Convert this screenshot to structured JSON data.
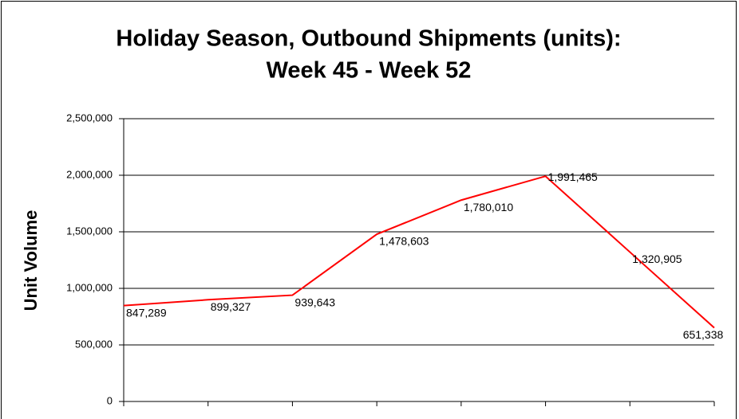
{
  "chart_data": {
    "type": "line",
    "title": [
      "Holiday Season, Outbound Shipments (units):",
      "Week 45 - Week 52"
    ],
    "y_label": "Unit Volume",
    "values": [
      847289,
      899327,
      939643,
      1478603,
      1780010,
      1991465,
      1320905,
      651338
    ],
    "value_labels": [
      "847,289",
      "899,327",
      "939,643",
      "1,478,603",
      "1,780,010",
      "1,991,465",
      "1,320,905",
      "651,338"
    ],
    "color": "#ff0000",
    "ylim": [
      0,
      2500000
    ],
    "yticks": [
      0,
      {
        "value": 500000,
        "label": "500,000"
      },
      {
        "value": 1000000,
        "label": "1,000,000"
      },
      {
        "value": 1500000,
        "label": "1,500,000"
      },
      {
        "value": 2000000,
        "label": "2,000,000"
      },
      {
        "value": 2500000,
        "label": "2,500,000"
      }
    ],
    "grid": true
  }
}
